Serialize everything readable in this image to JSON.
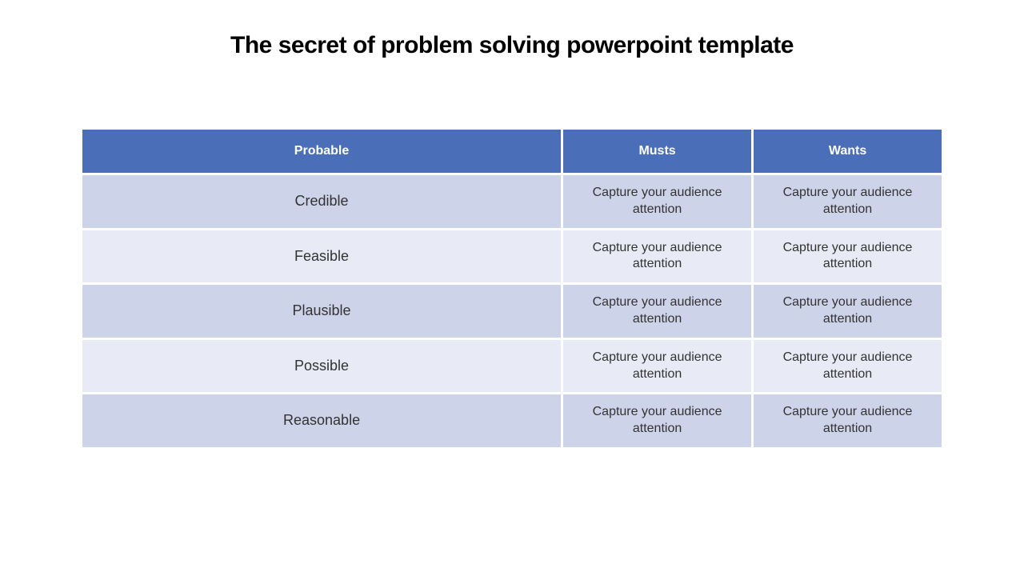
{
  "slide": {
    "title": "The secret of problem solving powerpoint template",
    "background_color": "#ffffff",
    "title_color": "#000000",
    "title_fontsize": 30
  },
  "table": {
    "type": "table",
    "header_bg_color": "#4a6fb8",
    "header_text_color": "#ffffff",
    "row_odd_bg_color": "#cdd3e8",
    "row_even_bg_color": "#e8ebf5",
    "cell_text_color": "#333333",
    "border_spacing": 3,
    "columns": [
      {
        "label": "Probable",
        "width_percent": 56
      },
      {
        "label": "Musts",
        "width_percent": 22
      },
      {
        "label": "Wants",
        "width_percent": 22
      }
    ],
    "rows": [
      {
        "label": "Credible",
        "musts": "Capture your audience attention",
        "wants": "Capture your audience attention"
      },
      {
        "label": "Feasible",
        "musts": "Capture your audience attention",
        "wants": "Capture your audience attention"
      },
      {
        "label": "Plausible",
        "musts": "Capture your audience attention",
        "wants": "Capture your audience attention"
      },
      {
        "label": "Possible",
        "musts": "Capture your audience attention",
        "wants": "Capture your audience attention"
      },
      {
        "label": "Reasonable",
        "musts": "Capture your audience attention",
        "wants": "Capture your audience attention"
      }
    ]
  }
}
